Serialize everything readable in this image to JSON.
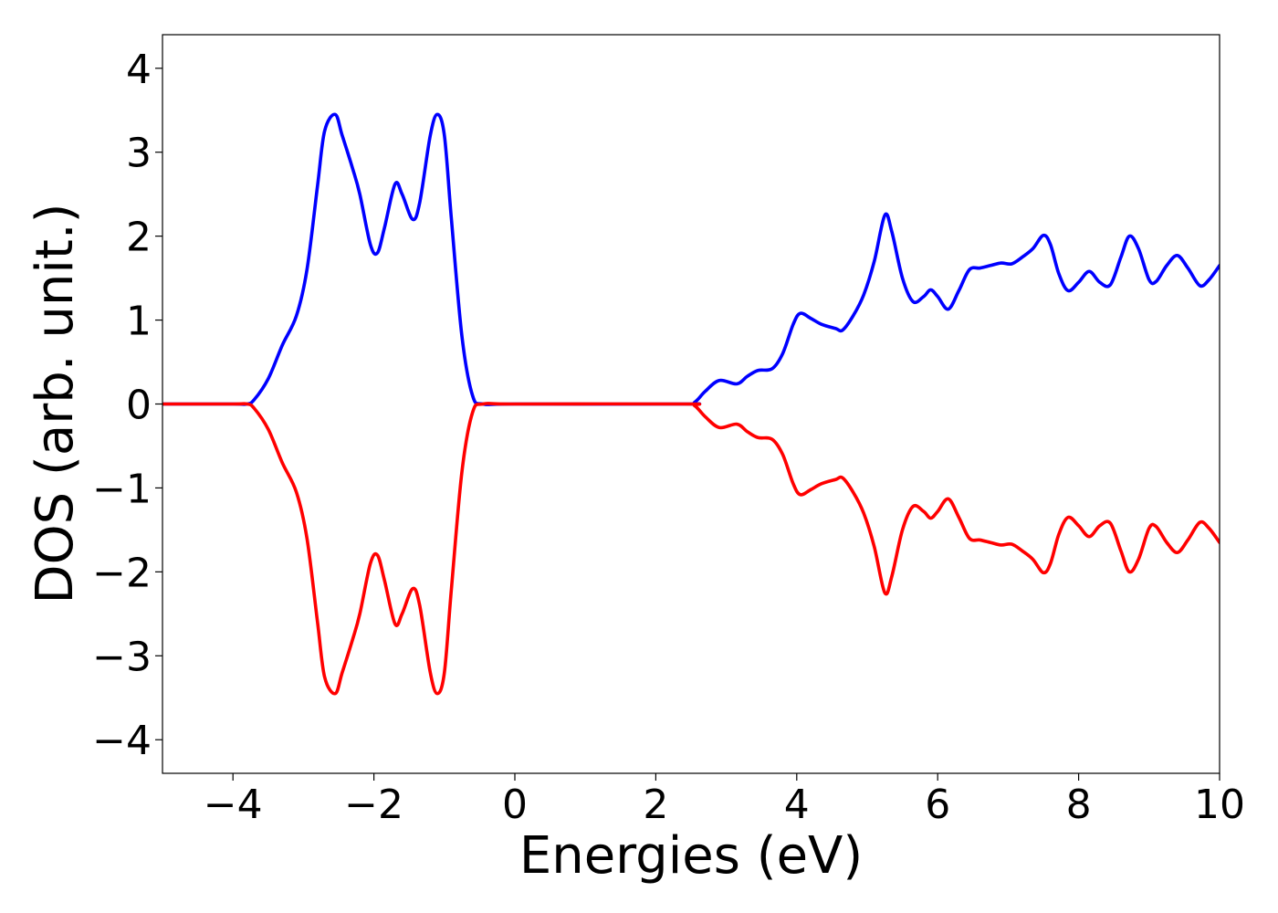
{
  "chart_data": {
    "type": "line",
    "title": "",
    "xlabel": "Energies (eV)",
    "ylabel": "DOS (arb. unit.)",
    "xlim": [
      -5,
      10
    ],
    "ylim": [
      -4.4,
      4.4
    ],
    "xticks": [
      -4,
      -2,
      0,
      2,
      4,
      6,
      8,
      10
    ],
    "yticks": [
      -4,
      -3,
      -2,
      -1,
      0,
      1,
      2,
      3,
      4
    ],
    "xtick_labels": [
      "−4",
      "−2",
      "0",
      "2",
      "4",
      "6",
      "8",
      "10"
    ],
    "ytick_labels": [
      "−4",
      "−3",
      "−2",
      "−1",
      "0",
      "1",
      "2",
      "3",
      "4"
    ],
    "grid": false,
    "legend": "none",
    "series": [
      {
        "color": "#0000ff",
        "points": [
          [
            -5.0,
            0.0
          ],
          [
            -4.0,
            0.0
          ],
          [
            -3.8,
            0.0
          ],
          [
            -3.7,
            0.05
          ],
          [
            -3.5,
            0.3
          ],
          [
            -3.3,
            0.7
          ],
          [
            -3.1,
            1.05
          ],
          [
            -2.95,
            1.6
          ],
          [
            -2.8,
            2.6
          ],
          [
            -2.7,
            3.25
          ],
          [
            -2.55,
            3.45
          ],
          [
            -2.45,
            3.2
          ],
          [
            -2.3,
            2.8
          ],
          [
            -2.2,
            2.5
          ],
          [
            -2.05,
            1.9
          ],
          [
            -1.95,
            1.8
          ],
          [
            -1.85,
            2.1
          ],
          [
            -1.7,
            2.62
          ],
          [
            -1.6,
            2.5
          ],
          [
            -1.45,
            2.2
          ],
          [
            -1.35,
            2.4
          ],
          [
            -1.2,
            3.2
          ],
          [
            -1.1,
            3.45
          ],
          [
            -1.0,
            3.2
          ],
          [
            -0.9,
            2.2
          ],
          [
            -0.75,
            0.8
          ],
          [
            -0.6,
            0.1
          ],
          [
            -0.45,
            0.0
          ],
          [
            0.0,
            0.0
          ],
          [
            2.4,
            0.0
          ],
          [
            2.55,
            0.02
          ],
          [
            2.7,
            0.15
          ],
          [
            2.9,
            0.28
          ],
          [
            3.15,
            0.24
          ],
          [
            3.3,
            0.33
          ],
          [
            3.45,
            0.4
          ],
          [
            3.65,
            0.42
          ],
          [
            3.8,
            0.6
          ],
          [
            3.95,
            0.95
          ],
          [
            4.05,
            1.08
          ],
          [
            4.2,
            1.02
          ],
          [
            4.35,
            0.95
          ],
          [
            4.55,
            0.9
          ],
          [
            4.65,
            0.88
          ],
          [
            4.8,
            1.05
          ],
          [
            4.95,
            1.3
          ],
          [
            5.1,
            1.7
          ],
          [
            5.25,
            2.25
          ],
          [
            5.35,
            2.05
          ],
          [
            5.5,
            1.5
          ],
          [
            5.65,
            1.22
          ],
          [
            5.8,
            1.28
          ],
          [
            5.9,
            1.36
          ],
          [
            6.0,
            1.28
          ],
          [
            6.15,
            1.13
          ],
          [
            6.3,
            1.35
          ],
          [
            6.45,
            1.6
          ],
          [
            6.6,
            1.62
          ],
          [
            6.75,
            1.65
          ],
          [
            6.9,
            1.68
          ],
          [
            7.05,
            1.67
          ],
          [
            7.2,
            1.75
          ],
          [
            7.35,
            1.85
          ],
          [
            7.5,
            2.01
          ],
          [
            7.6,
            1.9
          ],
          [
            7.72,
            1.55
          ],
          [
            7.85,
            1.35
          ],
          [
            8.0,
            1.45
          ],
          [
            8.15,
            1.58
          ],
          [
            8.3,
            1.45
          ],
          [
            8.45,
            1.42
          ],
          [
            8.6,
            1.75
          ],
          [
            8.72,
            2.0
          ],
          [
            8.85,
            1.85
          ],
          [
            9.0,
            1.48
          ],
          [
            9.1,
            1.46
          ],
          [
            9.25,
            1.65
          ],
          [
            9.4,
            1.77
          ],
          [
            9.55,
            1.62
          ],
          [
            9.72,
            1.41
          ],
          [
            9.85,
            1.48
          ],
          [
            10.0,
            1.65
          ]
        ]
      },
      {
        "color": "#ff0000",
        "points": [
          [
            -5.0,
            0.0
          ],
          [
            -4.0,
            0.0
          ],
          [
            -3.8,
            0.0
          ],
          [
            -3.7,
            -0.05
          ],
          [
            -3.5,
            -0.3
          ],
          [
            -3.3,
            -0.7
          ],
          [
            -3.1,
            -1.05
          ],
          [
            -2.95,
            -1.6
          ],
          [
            -2.8,
            -2.6
          ],
          [
            -2.7,
            -3.25
          ],
          [
            -2.55,
            -3.45
          ],
          [
            -2.45,
            -3.2
          ],
          [
            -2.3,
            -2.8
          ],
          [
            -2.2,
            -2.5
          ],
          [
            -2.05,
            -1.9
          ],
          [
            -1.95,
            -1.8
          ],
          [
            -1.85,
            -2.1
          ],
          [
            -1.7,
            -2.62
          ],
          [
            -1.6,
            -2.5
          ],
          [
            -1.45,
            -2.2
          ],
          [
            -1.35,
            -2.4
          ],
          [
            -1.2,
            -3.2
          ],
          [
            -1.1,
            -3.45
          ],
          [
            -1.0,
            -3.2
          ],
          [
            -0.9,
            -2.2
          ],
          [
            -0.75,
            -0.8
          ],
          [
            -0.6,
            -0.1
          ],
          [
            -0.45,
            0.0
          ],
          [
            0.0,
            0.0
          ],
          [
            2.4,
            0.0
          ],
          [
            2.55,
            -0.02
          ],
          [
            2.7,
            -0.15
          ],
          [
            2.9,
            -0.28
          ],
          [
            3.15,
            -0.24
          ],
          [
            3.3,
            -0.33
          ],
          [
            3.45,
            -0.4
          ],
          [
            3.65,
            -0.42
          ],
          [
            3.8,
            -0.6
          ],
          [
            3.95,
            -0.95
          ],
          [
            4.05,
            -1.08
          ],
          [
            4.2,
            -1.02
          ],
          [
            4.35,
            -0.95
          ],
          [
            4.55,
            -0.9
          ],
          [
            4.65,
            -0.88
          ],
          [
            4.8,
            -1.05
          ],
          [
            4.95,
            -1.3
          ],
          [
            5.1,
            -1.7
          ],
          [
            5.25,
            -2.25
          ],
          [
            5.35,
            -2.05
          ],
          [
            5.5,
            -1.5
          ],
          [
            5.65,
            -1.22
          ],
          [
            5.8,
            -1.28
          ],
          [
            5.9,
            -1.36
          ],
          [
            6.0,
            -1.28
          ],
          [
            6.15,
            -1.13
          ],
          [
            6.3,
            -1.35
          ],
          [
            6.45,
            -1.6
          ],
          [
            6.6,
            -1.62
          ],
          [
            6.75,
            -1.65
          ],
          [
            6.9,
            -1.68
          ],
          [
            7.05,
            -1.67
          ],
          [
            7.2,
            -1.75
          ],
          [
            7.35,
            -1.85
          ],
          [
            7.5,
            -2.01
          ],
          [
            7.6,
            -1.9
          ],
          [
            7.72,
            -1.55
          ],
          [
            7.85,
            -1.35
          ],
          [
            8.0,
            -1.45
          ],
          [
            8.15,
            -1.58
          ],
          [
            8.3,
            -1.45
          ],
          [
            8.45,
            -1.42
          ],
          [
            8.6,
            -1.75
          ],
          [
            8.72,
            -2.0
          ],
          [
            8.85,
            -1.85
          ],
          [
            9.0,
            -1.48
          ],
          [
            9.1,
            -1.46
          ],
          [
            9.25,
            -1.65
          ],
          [
            9.4,
            -1.77
          ],
          [
            9.55,
            -1.62
          ],
          [
            9.72,
            -1.41
          ],
          [
            9.85,
            -1.48
          ],
          [
            10.0,
            -1.65
          ]
        ]
      }
    ]
  }
}
